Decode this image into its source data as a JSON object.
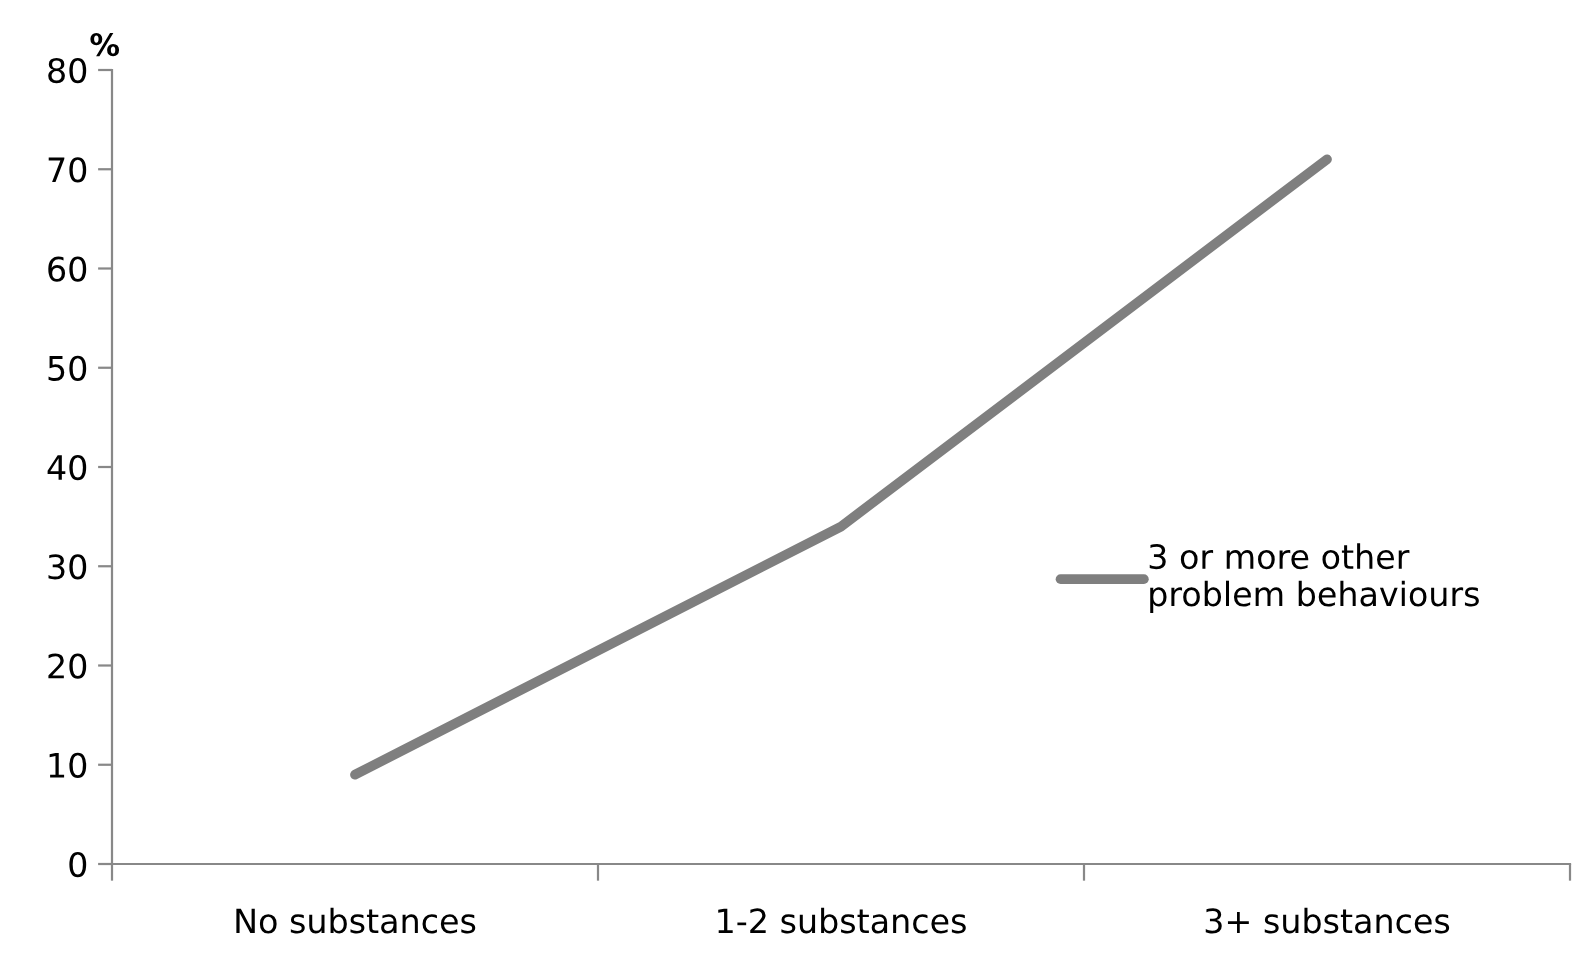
{
  "chart_data": {
    "type": "line",
    "ylabel": "%",
    "categories": [
      "No substances",
      "1-2 substances",
      "3+ substances"
    ],
    "series": [
      {
        "name": "3 or more other problem behaviours",
        "color": "#7f7f7f",
        "values": [
          9,
          34,
          71
        ]
      }
    ],
    "ylim": [
      0,
      80
    ],
    "yticks": [
      0,
      10,
      20,
      30,
      40,
      50,
      60,
      70,
      80
    ],
    "grid": false,
    "legend": "right",
    "marker": "none",
    "line_style": "solid"
  }
}
